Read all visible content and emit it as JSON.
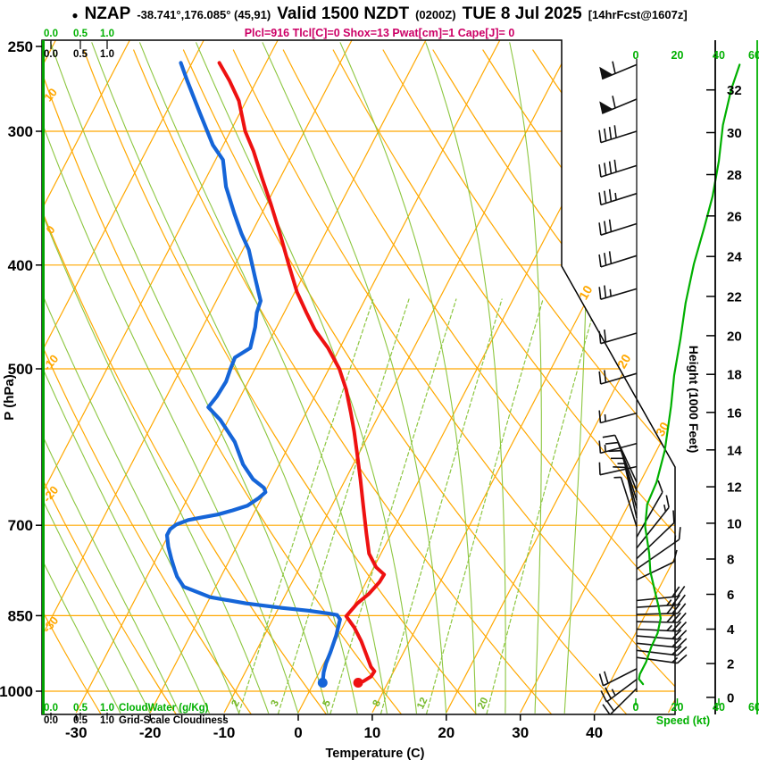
{
  "title": {
    "bullet": "●",
    "station": "NZAP",
    "coords": "-38.741°,176.085° (45,91)",
    "valid": "Valid 1500 NZDT",
    "zulu": "(0200Z)",
    "date": "TUE 8 Jul 2025",
    "fcst": "[14hrFcst@1607z]"
  },
  "params_line": "Plcl=916 Tlcl[C]=0 Shox=13 Pwat[cm]=1 Cape[J]= 0",
  "colors": {
    "isoline_orange": "#ffa800",
    "bright_green": "#00b000",
    "dark_green_axis": "#00a000",
    "light_green": "#8cc63f",
    "mix_label_green": "#76b82a",
    "temperature_red": "#ee1111",
    "dewpoint_blue": "#1565d8",
    "params_magenta": "#cc0066",
    "barb_black": "#111111"
  },
  "axes": {
    "pressure": {
      "label": "P (hPa)",
      "ticks": [
        250,
        300,
        400,
        500,
        700,
        850,
        1000
      ]
    },
    "temperature": {
      "label": "Temperature (C)",
      "ticks": [
        -30,
        -20,
        -10,
        0,
        10,
        20,
        30,
        40
      ]
    },
    "height": {
      "label": "Height (1000 Feet)",
      "ticks": [
        0,
        2,
        4,
        6,
        8,
        10,
        12,
        14,
        16,
        18,
        20,
        22,
        24,
        26,
        28,
        30,
        32
      ]
    },
    "speed": {
      "label": "Speed (kt)",
      "ticks": [
        0,
        20,
        40,
        60
      ]
    },
    "cloudwater": {
      "label": "CloudWater (g/Kg)",
      "ticks": [
        "0.0",
        "0.5",
        "1.0"
      ]
    },
    "cloudiness": {
      "label": "Grid-Scale Cloudiness",
      "ticks": [
        "0.0",
        "0.5",
        "1.0"
      ]
    }
  },
  "grid_labels": {
    "dry_adiabats_C": [
      10,
      0,
      -10,
      -20,
      -30
    ],
    "isotherms_C": [
      10,
      20,
      30
    ],
    "mixing_ratio_g_kg": [
      2,
      3,
      5,
      8,
      12,
      20
    ]
  },
  "chart_data": {
    "type": "line",
    "subtype": "skewt_log_p_sounding",
    "pressure_range_hPa": [
      250,
      1050
    ],
    "temp_axis_range_C": [
      -35,
      40
    ],
    "temperature_profile_p_T": [
      [
        982,
        6.0
      ],
      [
        979,
        6.6
      ],
      [
        969,
        7.3
      ],
      [
        958,
        7.4
      ],
      [
        949,
        6.6
      ],
      [
        924,
        5.1
      ],
      [
        898,
        3.5
      ],
      [
        872,
        1.6
      ],
      [
        851,
        -0.3
      ],
      [
        828,
        0.3
      ],
      [
        811,
        1.2
      ],
      [
        791,
        1.8
      ],
      [
        778,
        1.9
      ],
      [
        766,
        0.3
      ],
      [
        744,
        -1.6
      ],
      [
        712,
        -3.4
      ],
      [
        672,
        -5.7
      ],
      [
        634,
        -8.0
      ],
      [
        602,
        -10.1
      ],
      [
        572,
        -12.2
      ],
      [
        549,
        -14.0
      ],
      [
        523,
        -16.2
      ],
      [
        500,
        -18.6
      ],
      [
        478,
        -21.6
      ],
      [
        460,
        -24.6
      ],
      [
        443,
        -27.0
      ],
      [
        424,
        -29.7
      ],
      [
        400,
        -32.7
      ],
      [
        374,
        -36.1
      ],
      [
        351,
        -39.4
      ],
      [
        332,
        -42.4
      ],
      [
        313,
        -45.5
      ],
      [
        300,
        -48.0
      ],
      [
        281,
        -51.0
      ],
      [
        269,
        -53.7
      ],
      [
        259,
        -56.3
      ]
    ],
    "dewpoint_profile_p_Td": [
      [
        982,
        1.2
      ],
      [
        960,
        0.6
      ],
      [
        942,
        0.3
      ],
      [
        919,
        0.1
      ],
      [
        887,
        -0.3
      ],
      [
        857,
        -0.9
      ],
      [
        849,
        -1.6
      ],
      [
        846,
        -2.9
      ],
      [
        841,
        -5.8
      ],
      [
        836,
        -9.6
      ],
      [
        828,
        -14.7
      ],
      [
        817,
        -20.0
      ],
      [
        799,
        -24.3
      ],
      [
        782,
        -25.9
      ],
      [
        772,
        -26.6
      ],
      [
        753,
        -27.9
      ],
      [
        733,
        -29.2
      ],
      [
        715,
        -30.2
      ],
      [
        706,
        -30.2
      ],
      [
        699,
        -29.7
      ],
      [
        692,
        -28.4
      ],
      [
        688,
        -26.6
      ],
      [
        684,
        -24.8
      ],
      [
        678,
        -23.1
      ],
      [
        671,
        -21.4
      ],
      [
        660,
        -20.4
      ],
      [
        652,
        -19.9
      ],
      [
        646,
        -20.4
      ],
      [
        634,
        -22.5
      ],
      [
        614,
        -24.9
      ],
      [
        585,
        -27.6
      ],
      [
        558,
        -31.1
      ],
      [
        543,
        -33.6
      ],
      [
        530,
        -33.2
      ],
      [
        514,
        -33.0
      ],
      [
        500,
        -33.3
      ],
      [
        488,
        -33.5
      ],
      [
        478,
        -32.1
      ],
      [
        457,
        -32.9
      ],
      [
        443,
        -33.7
      ],
      [
        432,
        -34.0
      ],
      [
        424,
        -34.9
      ],
      [
        410,
        -36.5
      ],
      [
        397,
        -38.0
      ],
      [
        387,
        -39.2
      ],
      [
        374,
        -41.3
      ],
      [
        358,
        -43.7
      ],
      [
        338,
        -46.7
      ],
      [
        319,
        -49.0
      ],
      [
        309,
        -51.4
      ],
      [
        288,
        -55.5
      ],
      [
        269,
        -59.4
      ],
      [
        259,
        -61.5
      ]
    ],
    "speed_profile_p_kt": [
      [
        260,
        50
      ],
      [
        274,
        46
      ],
      [
        296,
        42
      ],
      [
        320,
        40
      ],
      [
        345,
        37
      ],
      [
        369,
        33
      ],
      [
        399,
        28
      ],
      [
        434,
        24
      ],
      [
        469,
        21.5
      ],
      [
        507,
        18.5
      ],
      [
        542,
        17
      ],
      [
        596,
        14
      ],
      [
        638,
        10
      ],
      [
        669,
        5.5
      ],
      [
        702,
        4.5
      ],
      [
        744,
        6.5
      ],
      [
        773,
        7
      ],
      [
        803,
        9
      ],
      [
        834,
        11
      ],
      [
        855,
        12
      ],
      [
        883,
        10.5
      ],
      [
        909,
        7.5
      ],
      [
        939,
        5
      ],
      [
        964,
        2
      ],
      [
        974,
        1.5
      ],
      [
        985,
        3.5
      ]
    ],
    "wind_barbs": [
      {
        "p": 260,
        "tail": [
          -0.92,
          0.38
        ],
        "flag": 1,
        "full": 1
      },
      {
        "p": 280,
        "tail": [
          -0.92,
          0.38
        ],
        "flag": 1,
        "full": 1
      },
      {
        "p": 300,
        "tail": [
          -0.95,
          0.3
        ],
        "full": 4
      },
      {
        "p": 323,
        "tail": [
          -0.95,
          0.3
        ],
        "full": 4
      },
      {
        "p": 343,
        "tail": [
          -0.95,
          0.3
        ],
        "full": 3,
        "half": 1
      },
      {
        "p": 366,
        "tail": [
          -0.95,
          0.3
        ],
        "full": 3
      },
      {
        "p": 392,
        "tail": [
          -0.95,
          0.3
        ],
        "full": 3
      },
      {
        "p": 421,
        "tail": [
          -0.96,
          0.28
        ],
        "full": 2,
        "half": 1
      },
      {
        "p": 463,
        "tail": [
          -0.96,
          0.28
        ],
        "full": 2
      },
      {
        "p": 505,
        "tail": [
          -0.96,
          0.28
        ],
        "full": 2
      },
      {
        "p": 550,
        "tail": [
          -0.97,
          0.26
        ],
        "full": 1,
        "half": 1
      },
      {
        "p": 587,
        "tail": [
          -0.97,
          0.26
        ],
        "full": 1,
        "half": 1
      },
      {
        "p": 617,
        "tail": [
          -0.98,
          0.22
        ],
        "full": 1
      },
      {
        "p": 638,
        "tail": [
          -0.42,
          -0.91
        ],
        "full": 1
      },
      {
        "p": 650,
        "tail": [
          -0.36,
          -0.93
        ],
        "full": 1
      },
      {
        "p": 663,
        "tail": [
          -0.3,
          -0.95
        ],
        "full": 1
      },
      {
        "p": 675,
        "tail": [
          -0.26,
          -0.97
        ],
        "full": 1,
        "half": 1
      },
      {
        "p": 689,
        "tail": [
          -0.22,
          -0.98
        ],
        "full": 1
      },
      {
        "p": 702,
        "tail": [
          -0.3,
          -0.95
        ],
        "half": 1
      },
      {
        "p": 718,
        "tail": [
          0.5,
          -0.87
        ],
        "full": 1
      },
      {
        "p": 735,
        "tail": [
          0.62,
          -0.78
        ],
        "full": 1,
        "half": 1
      },
      {
        "p": 752,
        "tail": [
          0.72,
          -0.69
        ],
        "full": 1
      },
      {
        "p": 769,
        "tail": [
          0.82,
          -0.57
        ],
        "full": 1,
        "half": 1
      },
      {
        "p": 787,
        "tail": [
          0.9,
          -0.43
        ],
        "full": 1
      },
      {
        "p": 823,
        "tail": [
          0.995,
          -0.1
        ],
        "full": 2
      },
      {
        "p": 835,
        "tail": [
          0.998,
          -0.06
        ],
        "full": 2,
        "half": 1
      },
      {
        "p": 848,
        "tail": [
          1,
          -0.03
        ],
        "full": 3
      },
      {
        "p": 861,
        "tail": [
          1,
          0.02
        ],
        "full": 3
      },
      {
        "p": 875,
        "tail": [
          1,
          0.05
        ],
        "full": 2,
        "half": 1
      },
      {
        "p": 888,
        "tail": [
          1,
          0.08
        ],
        "full": 2
      },
      {
        "p": 902,
        "tail": [
          0.99,
          0.1
        ],
        "full": 2
      },
      {
        "p": 916,
        "tail": [
          0.99,
          0.12
        ],
        "full": 2
      },
      {
        "p": 930,
        "tail": [
          0.99,
          0.14
        ],
        "full": 1,
        "half": 1
      },
      {
        "p": 953,
        "tail": [
          -0.89,
          0.45
        ],
        "full": 2
      },
      {
        "p": 975,
        "tail": [
          -0.8,
          0.6
        ],
        "full": 2,
        "half": 1
      },
      {
        "p": 994,
        "tail": [
          -0.71,
          0.7
        ],
        "full": 2
      }
    ]
  }
}
